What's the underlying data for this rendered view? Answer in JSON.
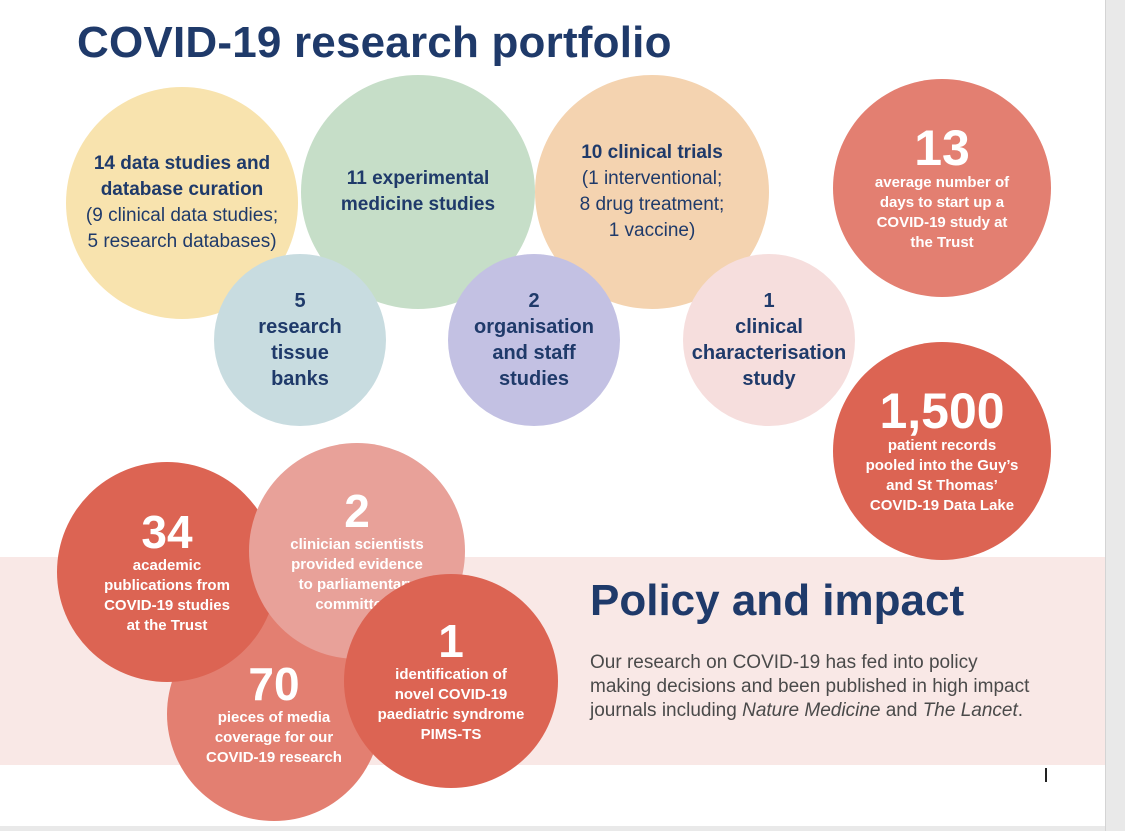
{
  "title": "COVID-19 research portfolio",
  "portfolio": {
    "data_studies": {
      "line1": "14 data studies and",
      "line2": "database curation",
      "line3": "(9 clinical data studies;",
      "line4": "5 research databases)",
      "color": "#f8e3ae"
    },
    "experimental": {
      "line1": "11 experimental",
      "line2": "medicine studies",
      "color": "#c6dec8"
    },
    "clinical_trials": {
      "line1": "10 clinical trials",
      "line2": "(1 interventional;",
      "line3": "8 drug treatment;",
      "line4": "1 vaccine)",
      "color": "#f4d3b0"
    },
    "tissue_banks": {
      "line1": "5",
      "line2": "research",
      "line3": "tissue",
      "line4": "banks",
      "color": "#c8dce0"
    },
    "org_staff": {
      "line1": "2",
      "line2": "organisation",
      "line3": "and staff",
      "line4": "studies",
      "color": "#c3c1e3"
    },
    "characterisation": {
      "line1": "1",
      "line2": "clinical",
      "line3": "characterisation",
      "line4": "study",
      "color": "#f6dedd"
    }
  },
  "stats": {
    "startup": {
      "number": "13",
      "line1": "average number of",
      "line2": "days to start up a",
      "line3": "COVID-19 study at",
      "line4": "the Trust",
      "color": "#e37f71"
    },
    "records": {
      "number": "1,500",
      "line1": "patient records",
      "line2": "pooled into the Guy’s",
      "line3": "and St Thomas’",
      "line4": "COVID-19 Data Lake",
      "color": "#dc6453"
    }
  },
  "impact": {
    "publications": {
      "number": "34",
      "line1": "academic",
      "line2": "publications from",
      "line3": "COVID-19 studies",
      "line4": "at the Trust",
      "color": "#dc6453"
    },
    "clinicians": {
      "number": "2",
      "line1": "clinician scientists",
      "line2": "provided evidence",
      "line3": "to parliamentary",
      "line4": "committees",
      "color": "#e8a199"
    },
    "media": {
      "number": "70",
      "line1": "pieces of media",
      "line2": "coverage for our",
      "line3": "COVID-19 research",
      "color": "#e37f71"
    },
    "pims": {
      "number": "1",
      "line1": "identification of",
      "line2": "novel COVID-19",
      "line3": "paediatric syndrome",
      "line4": "PIMS-TS",
      "color": "#dc6453"
    }
  },
  "policy": {
    "title": "Policy and impact",
    "body_part1": "Our research on COVID-19 has fed into policy making decisions and been published in high impact journals including ",
    "journal1": "Nature Medicine",
    "body_part2": " and ",
    "journal2": "The Lancet",
    "body_end": "."
  }
}
